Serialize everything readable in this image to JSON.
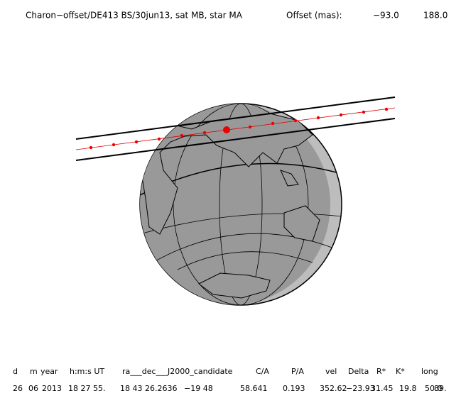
{
  "header": {
    "title": "Charon−offset/DE413 BS/30jun13, sat MB, star MA",
    "offset_label": "Offset (mas):",
    "offset_x": "−93.0",
    "offset_y": "188.0"
  },
  "table": {
    "headers": [
      "d",
      "m",
      "year",
      "h:m:s UT",
      "ra___dec___J2000_candidate",
      "C/A",
      "P/A",
      "vel",
      "Delta",
      "R*",
      "K*",
      "long"
    ],
    "values": [
      "26",
      "06",
      "2013",
      "18 27 55.",
      "18 43 26.2636",
      "−19 48",
      "58.641",
      "0.193",
      "352.62",
      "−23.93",
      "31.45",
      "19.8",
      "50.0",
      "89."
    ]
  }
}
